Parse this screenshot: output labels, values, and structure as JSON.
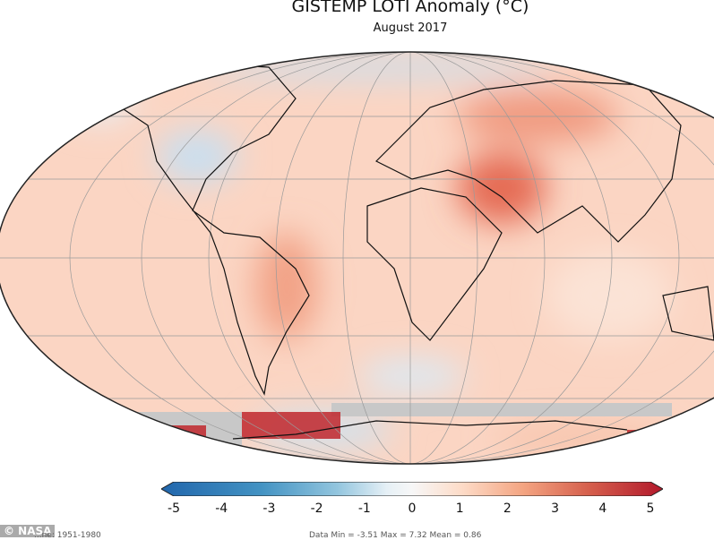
{
  "title": "GISTEMP LOTI Anomaly (°C)",
  "subtitle": "August 2017",
  "colorbar": {
    "ticks": [
      "-5",
      "-4",
      "-3",
      "-2",
      "-1",
      "0",
      "1",
      "2",
      "3",
      "4",
      "5"
    ],
    "min": -5,
    "max": 5,
    "colors": [
      "#2166ac",
      "#4393c3",
      "#92c5de",
      "#d1e5f0",
      "#f7f7f7",
      "#fddbc7",
      "#f4a582",
      "#d6604d",
      "#b2182b"
    ]
  },
  "watermark": "© NASA",
  "footer_left": "...ne: 1951-1980",
  "footer_stats": "Data Min = -3.51 Max = 7.32 Mean = 0.86"
}
